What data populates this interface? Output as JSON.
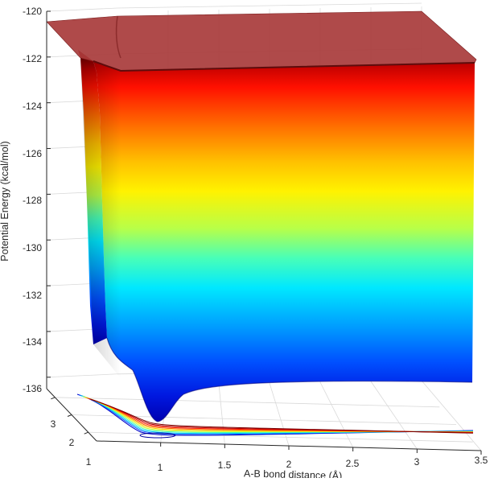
{
  "chart_data": {
    "type": "surface",
    "title": "",
    "xlabel": "A-B bond distance (Å)",
    "zlabel": "Potential Energy (kcal/mol)",
    "ylabel": "",
    "x_ticks": [
      "1",
      "1.5",
      "2",
      "2.5",
      "3",
      "3.5"
    ],
    "y_ticks": [
      "1",
      "2",
      "3"
    ],
    "z_ticks": [
      "-120",
      "-122",
      "-124",
      "-126",
      "-128",
      "-130",
      "-132",
      "-134",
      "-136"
    ],
    "xlim": [
      0.5,
      3.5
    ],
    "ylim": [
      0.5,
      3.5
    ],
    "zlim": [
      -136.5,
      -120
    ],
    "grid": true,
    "colormap": "jet",
    "contour_projection": true,
    "surface_features": {
      "well_minimum_energy": -136.8,
      "well_minimum_bond_distance": 0.95,
      "dissociation_plateau_energy": -135.7,
      "repulsive_wall_cap_energy": -120.2,
      "top_plateau_energy": -122.3,
      "cap_color": "#a83b3b"
    }
  }
}
